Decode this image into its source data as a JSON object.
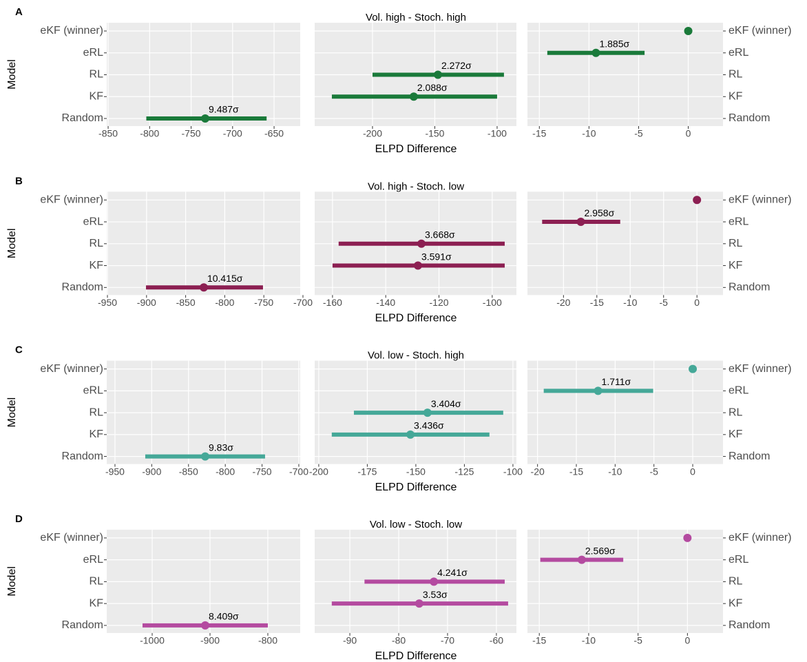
{
  "chart_data": [
    {
      "type": "pointrange",
      "label": "A",
      "title": "Vol. high - Stoch. high",
      "ylabel": "Model",
      "xlabel": "ELPD Difference",
      "color": "#1a7a3a",
      "categories": [
        "eKF (winner)",
        "eRL",
        "RL",
        "KF",
        "Random"
      ],
      "panels": [
        {
          "xlim": [
            -851.7,
            -618.5
          ],
          "xticks": [
            -850,
            -800,
            -750,
            -700,
            -650
          ],
          "values": [
            null,
            null,
            null,
            null,
            -733
          ],
          "lower": [
            null,
            null,
            null,
            null,
            -804
          ],
          "upper": [
            null,
            null,
            null,
            null,
            -659
          ],
          "sigma_labels": [
            null,
            null,
            null,
            null,
            "9.487σ"
          ]
        },
        {
          "xlim": [
            -246.4,
            -84.5
          ],
          "xticks": [
            -200,
            -150,
            -100
          ],
          "values": [
            null,
            null,
            -147.5,
            -166.9,
            null
          ],
          "lower": [
            null,
            null,
            -200,
            -232.6,
            null
          ],
          "upper": [
            null,
            null,
            -94.5,
            -100,
            null
          ],
          "sigma_labels": [
            null,
            null,
            "2.272σ",
            "2.088σ",
            null
          ]
        },
        {
          "xlim": [
            -16.2,
            3.5
          ],
          "xticks": [
            -15,
            -10,
            -5,
            0
          ],
          "values": [
            0,
            -9.3,
            null,
            null,
            null
          ],
          "lower": [
            null,
            -14.2,
            null,
            null,
            null
          ],
          "upper": [
            null,
            -4.4,
            null,
            null,
            null
          ],
          "sigma_labels": [
            null,
            "1.885σ",
            null,
            null,
            null
          ]
        }
      ]
    },
    {
      "type": "pointrange",
      "label": "B",
      "title": "Vol. high - Stoch. low",
      "ylabel": "Model",
      "xlabel": "ELPD Difference",
      "color": "#8c1f52",
      "categories": [
        "eKF (winner)",
        "eRL",
        "RL",
        "KF",
        "Random"
      ],
      "panels": [
        {
          "xlim": [
            -950.9,
            -703.5
          ],
          "xticks": [
            -950,
            -900,
            -850,
            -800,
            -750,
            -700
          ],
          "values": [
            null,
            null,
            null,
            null,
            -826.8
          ],
          "lower": [
            null,
            null,
            null,
            null,
            -900.7
          ],
          "upper": [
            null,
            null,
            null,
            null,
            -751.1
          ],
          "sigma_labels": [
            null,
            null,
            null,
            null,
            "10.415σ"
          ]
        },
        {
          "xlim": [
            -166.7,
            -90.9
          ],
          "xticks": [
            -160,
            -140,
            -120,
            -100
          ],
          "values": [
            null,
            null,
            -126.6,
            -127.9,
            null
          ],
          "lower": [
            null,
            null,
            -157.7,
            -160,
            null
          ],
          "upper": [
            null,
            null,
            -95.3,
            -95.3,
            null
          ],
          "sigma_labels": [
            null,
            null,
            "3.668σ",
            "3.591σ",
            null
          ]
        },
        {
          "xlim": [
            -25.4,
            3.9
          ],
          "xticks": [
            -20,
            -15,
            -10,
            -5,
            0
          ],
          "values": [
            0,
            -17.4,
            null,
            null,
            null
          ],
          "lower": [
            null,
            -23.2,
            null,
            null,
            null
          ],
          "upper": [
            null,
            -11.5,
            null,
            null,
            null
          ],
          "sigma_labels": [
            null,
            "2.958σ",
            null,
            null,
            null
          ]
        }
      ]
    },
    {
      "type": "pointrange",
      "label": "C",
      "title": "Vol. low - Stoch. high",
      "ylabel": "Model",
      "xlabel": "ELPD Difference",
      "color": "#45a898",
      "categories": [
        "eKF (winner)",
        "eRL",
        "RL",
        "KF",
        "Random"
      ],
      "panels": [
        {
          "xlim": [
            -961.2,
            -698.1
          ],
          "xticks": [
            -950,
            -900,
            -850,
            -800,
            -750,
            -700
          ],
          "values": [
            null,
            null,
            null,
            null,
            -827.3
          ],
          "lower": [
            null,
            null,
            null,
            null,
            -908.8
          ],
          "upper": [
            null,
            null,
            null,
            null,
            -745.9
          ],
          "sigma_labels": [
            null,
            null,
            null,
            null,
            "9.83σ"
          ]
        },
        {
          "xlim": [
            -202.1,
            -98.2
          ],
          "xticks": [
            -200,
            -175,
            -150,
            -125,
            -100
          ],
          "values": [
            null,
            null,
            -144,
            -152.8,
            null
          ],
          "lower": [
            null,
            null,
            -181.9,
            -193.3,
            null
          ],
          "upper": [
            null,
            null,
            -105,
            -112.1,
            null
          ],
          "sigma_labels": [
            null,
            null,
            "3.404σ",
            "3.436σ",
            null
          ]
        },
        {
          "xlim": [
            -21.3,
            3.9
          ],
          "xticks": [
            -20,
            -15,
            -10,
            -5,
            0
          ],
          "values": [
            0,
            -12.2,
            null,
            null,
            null
          ],
          "lower": [
            null,
            -19.2,
            null,
            null,
            null
          ],
          "upper": [
            null,
            -5.1,
            null,
            null,
            null
          ],
          "sigma_labels": [
            null,
            "1.711σ",
            null,
            null,
            null
          ]
        }
      ]
    },
    {
      "type": "pointrange",
      "label": "D",
      "title": "Vol. low - Stoch. low",
      "ylabel": "Model",
      "xlabel": "ELPD Difference",
      "color": "#b44ba0",
      "categories": [
        "eKF (winner)",
        "eRL",
        "RL",
        "KF",
        "Random"
      ],
      "panels": [
        {
          "xlim": [
            -1078.6,
            -744
          ],
          "xticks": [
            -1000,
            -900,
            -800
          ],
          "values": [
            null,
            null,
            null,
            null,
            -908.3
          ],
          "lower": [
            null,
            null,
            null,
            null,
            -1016.7
          ],
          "upper": [
            null,
            null,
            null,
            null,
            -800
          ],
          "sigma_labels": [
            null,
            null,
            null,
            null,
            "8.409σ"
          ]
        },
        {
          "xlim": [
            -97.2,
            -55.9
          ],
          "xticks": [
            -90,
            -80,
            -70,
            -60
          ],
          "values": [
            null,
            null,
            -72.8,
            -75.8,
            null
          ],
          "lower": [
            null,
            null,
            -87,
            -93.7,
            null
          ],
          "upper": [
            null,
            null,
            -58.3,
            -57.6,
            null
          ],
          "sigma_labels": [
            null,
            null,
            "4.241σ",
            "3.53σ",
            null
          ]
        },
        {
          "xlim": [
            -16.2,
            3.6
          ],
          "xticks": [
            -15,
            -10,
            -5,
            0
          ],
          "values": [
            0,
            -10.7,
            null,
            null,
            null
          ],
          "lower": [
            null,
            -14.9,
            null,
            null,
            null
          ],
          "upper": [
            null,
            -6.5,
            null,
            null,
            null
          ],
          "sigma_labels": [
            null,
            "2.569σ",
            null,
            null,
            null
          ]
        }
      ]
    }
  ]
}
